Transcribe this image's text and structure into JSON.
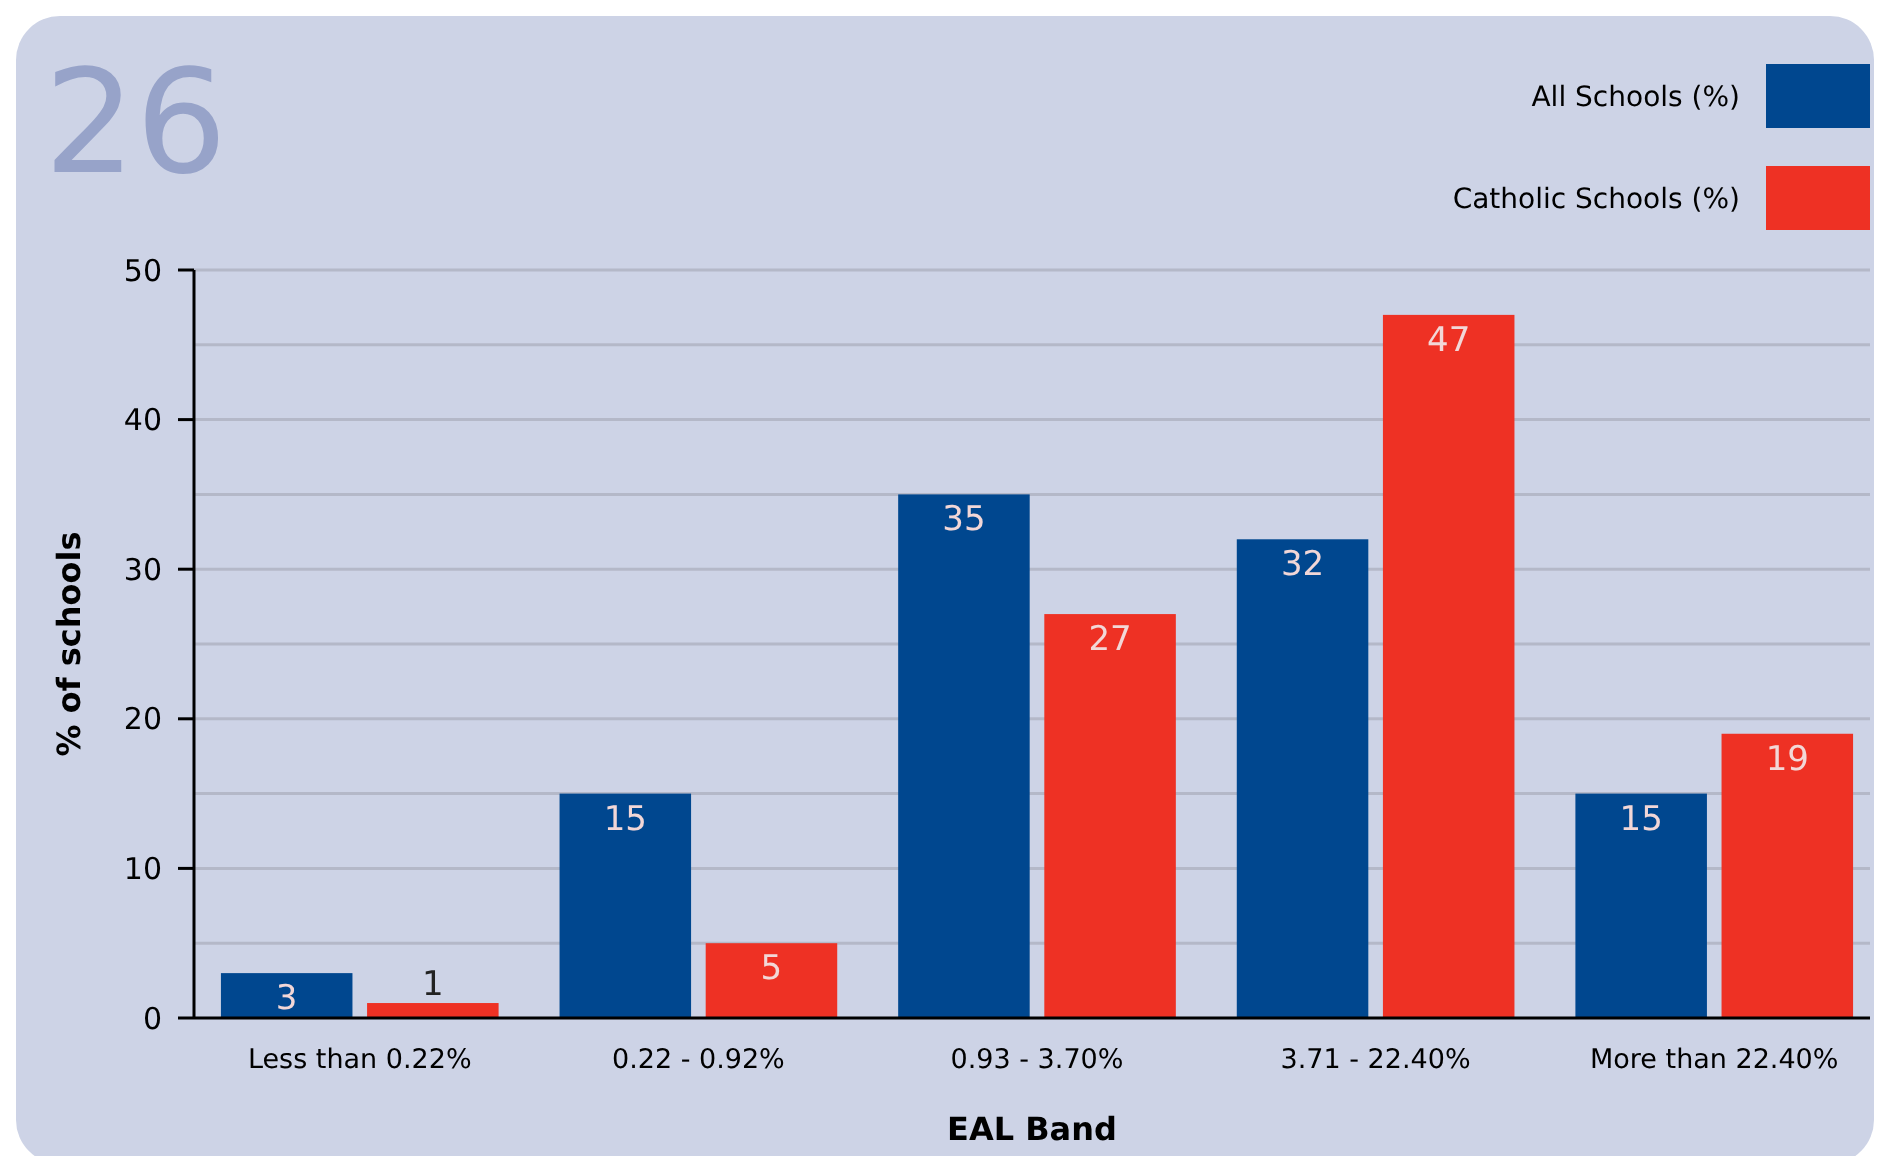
{
  "chart_data": {
    "type": "bar",
    "title": "26",
    "xlabel": "EAL Band",
    "ylabel": "% of schools",
    "categories": [
      "Less than 0.22%",
      "0.22 - 0.92%",
      "0.93 - 3.70%",
      "3.71 - 22.40%",
      "More than 22.40%"
    ],
    "series": [
      {
        "name": "All Schools (%)",
        "color": "#00478f",
        "values": [
          3,
          15,
          35,
          32,
          15
        ]
      },
      {
        "name": "Catholic Schools (%)",
        "color": "#ee3124",
        "values": [
          1,
          5,
          27,
          47,
          19
        ]
      }
    ],
    "ylim": [
      0,
      50
    ],
    "yticks": [
      0,
      {
        "value": 5,
        "label": null
      },
      10,
      {
        "value": 15,
        "label": null
      },
      20,
      {
        "value": 25,
        "label": null
      },
      30,
      {
        "value": 35,
        "label": null
      },
      40,
      {
        "value": 45,
        "label": null
      },
      50
    ],
    "grid": "y",
    "legend": "top right",
    "data_labels": true
  }
}
